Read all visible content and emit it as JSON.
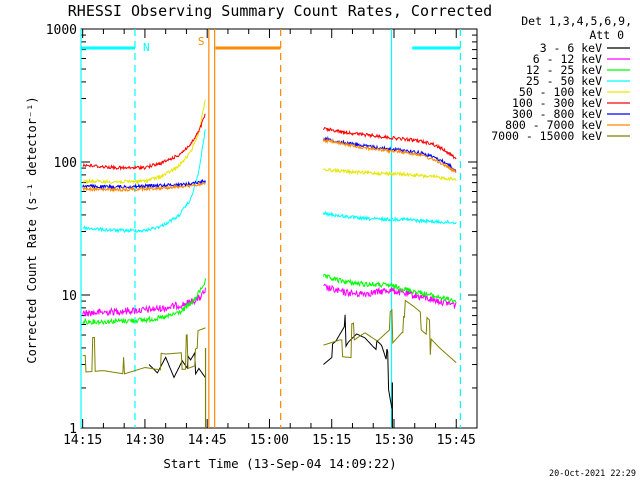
{
  "chart_data": {
    "type": "line",
    "title": "RHESSI Observing Summary Count Rates, Corrected",
    "xlabel": "Start Time (13-Sep-04 14:09:22)",
    "ylabel": "Corrected Count Rate (s⁻¹ detector⁻¹)",
    "yscale": "log",
    "ylim": [
      1,
      1000
    ],
    "xlim_minutes": [
      14.6,
      110
    ],
    "x_unit": "minutes after 14:00 UT",
    "xticks": [
      {
        "label": "14:15",
        "t": 15
      },
      {
        "label": "14:30",
        "t": 30
      },
      {
        "label": "14:45",
        "t": 45
      },
      {
        "label": "15:00",
        "t": 60
      },
      {
        "label": "15:15",
        "t": 75
      },
      {
        "label": "15:30",
        "t": 90
      },
      {
        "label": "15:45",
        "t": 105
      }
    ],
    "yticks": [
      {
        "label": "1",
        "v": 1
      },
      {
        "label": "10",
        "v": 10
      },
      {
        "label": "100",
        "v": 100
      },
      {
        "label": "1000",
        "v": 1000
      }
    ],
    "legend_placement": "top-right",
    "legend_header": [
      "Det 1,3,4,5,6,9,",
      "Att 0"
    ],
    "series": [
      {
        "name": "3 - 6 keV",
        "color": "#000000",
        "seg1": [
          [
            31,
            3.0
          ],
          [
            33,
            2.6
          ],
          [
            35,
            3.4
          ],
          [
            37,
            2.4
          ],
          [
            39,
            3.2
          ],
          [
            41,
            2.6
          ],
          [
            43,
            3.3
          ],
          [
            44.6,
            2.8
          ]
        ],
        "seg2": [
          [
            73,
            3.0
          ],
          [
            76,
            3.6
          ],
          [
            79,
            5.2
          ],
          [
            81,
            6.0
          ],
          [
            83,
            5.6
          ],
          [
            85,
            4.8
          ],
          [
            87,
            4.2
          ],
          [
            88.5,
            3.0
          ],
          [
            89.5,
            2.0
          ]
        ]
      },
      {
        "name": "6 - 12 keV",
        "color": "#ff00ff",
        "seg1": [
          [
            15,
            7.3
          ],
          [
            20,
            7.4
          ],
          [
            25,
            7.6
          ],
          [
            30,
            7.7
          ],
          [
            35,
            8.0
          ],
          [
            40,
            8.6
          ],
          [
            43,
            9.4
          ],
          [
            44.6,
            10.8
          ]
        ],
        "seg2": [
          [
            73,
            11.5
          ],
          [
            77,
            10.6
          ],
          [
            81,
            10.2
          ],
          [
            85,
            10.4
          ],
          [
            89,
            10.9
          ],
          [
            93,
            10.2
          ],
          [
            97,
            9.6
          ],
          [
            101,
            9.0
          ],
          [
            105,
            8.4
          ]
        ]
      },
      {
        "name": "12 - 25 keV",
        "color": "#00ff00",
        "seg1": [
          [
            15,
            6.3
          ],
          [
            20,
            6.3
          ],
          [
            25,
            6.4
          ],
          [
            30,
            6.5
          ],
          [
            35,
            6.8
          ],
          [
            39,
            7.6
          ],
          [
            42,
            9.2
          ],
          [
            44.6,
            12.8
          ]
        ],
        "seg2": [
          [
            73,
            13.8
          ],
          [
            77,
            12.8
          ],
          [
            81,
            12.2
          ],
          [
            85,
            12.0
          ],
          [
            89,
            11.8
          ],
          [
            93,
            11.0
          ],
          [
            97,
            10.3
          ],
          [
            101,
            9.6
          ],
          [
            105,
            9.0
          ]
        ]
      },
      {
        "name": "25 - 50 keV",
        "color": "#00ffff",
        "seg1": [
          [
            15,
            32
          ],
          [
            20,
            31
          ],
          [
            25,
            30.5
          ],
          [
            30,
            30.5
          ],
          [
            34,
            33
          ],
          [
            38,
            39
          ],
          [
            41,
            52
          ],
          [
            43,
            85
          ],
          [
            44.6,
            180
          ]
        ],
        "seg2": [
          [
            73,
            41
          ],
          [
            78,
            39
          ],
          [
            83,
            37.5
          ],
          [
            88,
            37
          ],
          [
            92,
            37.2
          ],
          [
            96,
            36.2
          ],
          [
            100,
            35.5
          ],
          [
            105,
            35
          ]
        ]
      },
      {
        "name": "50 - 100 keV",
        "color": "#e6e600",
        "seg1": [
          [
            15,
            72
          ],
          [
            20,
            71
          ],
          [
            25,
            71
          ],
          [
            30,
            72
          ],
          [
            34,
            78
          ],
          [
            38,
            92
          ],
          [
            41,
            118
          ],
          [
            43,
            168
          ],
          [
            44.6,
            300
          ]
        ],
        "seg2": [
          [
            73,
            88
          ],
          [
            78,
            85
          ],
          [
            83,
            83
          ],
          [
            88,
            82
          ],
          [
            92,
            81
          ],
          [
            96,
            79
          ],
          [
            100,
            77
          ],
          [
            105,
            74
          ]
        ]
      },
      {
        "name": "100 - 300 keV",
        "color": "#ff0000",
        "seg1": [
          [
            15,
            95
          ],
          [
            20,
            92
          ],
          [
            25,
            90
          ],
          [
            30,
            91
          ],
          [
            34,
            98
          ],
          [
            38,
            112
          ],
          [
            41,
            135
          ],
          [
            43,
            170
          ],
          [
            44.6,
            230
          ]
        ],
        "seg2": [
          [
            73,
            178
          ],
          [
            78,
            168
          ],
          [
            83,
            160
          ],
          [
            88,
            154
          ],
          [
            91,
            150
          ],
          [
            95,
            146
          ],
          [
            99,
            138
          ],
          [
            102,
            124
          ],
          [
            105,
            106
          ]
        ]
      },
      {
        "name": "300 - 800 keV",
        "color": "#0000ff",
        "seg1": [
          [
            15,
            66
          ],
          [
            20,
            65
          ],
          [
            25,
            65
          ],
          [
            30,
            66
          ],
          [
            35,
            67
          ],
          [
            40,
            68
          ],
          [
            44.6,
            72
          ]
        ],
        "seg2": [
          [
            73,
            150
          ],
          [
            78,
            140
          ],
          [
            83,
            132
          ],
          [
            88,
            126
          ],
          [
            92,
            123
          ],
          [
            96,
            118
          ],
          [
            100,
            108
          ],
          [
            103,
            96
          ],
          [
            105,
            86
          ]
        ]
      },
      {
        "name": "800 - 7000 keV",
        "color": "#ff8800",
        "seg1": [
          [
            15,
            63
          ],
          [
            20,
            62
          ],
          [
            25,
            62
          ],
          [
            30,
            63
          ],
          [
            35,
            64
          ],
          [
            40,
            66
          ],
          [
            44.6,
            68
          ]
        ],
        "seg2": [
          [
            73,
            146
          ],
          [
            78,
            136
          ],
          [
            83,
            128
          ],
          [
            88,
            122
          ],
          [
            92,
            119
          ],
          [
            96,
            114
          ],
          [
            100,
            103
          ],
          [
            103,
            92
          ],
          [
            105,
            83
          ]
        ]
      },
      {
        "name": "7000 - 15000 keV",
        "color": "#808000",
        "seg1": [
          [
            15,
            3.5
          ],
          [
            20,
            3.6
          ],
          [
            25,
            3.4
          ],
          [
            30,
            3.8
          ],
          [
            35,
            3.6
          ],
          [
            40,
            3.7
          ],
          [
            44.6,
            4.2
          ]
        ],
        "seg2": [
          [
            73,
            4.2
          ],
          [
            77,
            4.6
          ],
          [
            80,
            4.5
          ],
          [
            83,
            5.2
          ],
          [
            86,
            4.5
          ],
          [
            89,
            5.5
          ],
          [
            92,
            7.0
          ],
          [
            95,
            6.0
          ],
          [
            98,
            5.0
          ],
          [
            101,
            4.0
          ],
          [
            105,
            3.1
          ]
        ]
      }
    ],
    "bars": [
      {
        "label": "N",
        "color": "#00ffff",
        "intervals": [
          [
            14.6,
            27.6
          ],
          [
            94.4,
            106
          ]
        ]
      },
      {
        "label": "S",
        "color": "#ff8800",
        "intervals": [
          [
            47,
            62.7
          ]
        ]
      }
    ],
    "vlines": [
      {
        "t": 14.6,
        "color": "#00ffff",
        "dash": false
      },
      {
        "t": 27.6,
        "color": "#00ffff",
        "dash": true
      },
      {
        "t": 45.4,
        "color": "#ff8800",
        "dash": false
      },
      {
        "t": 46.8,
        "color": "#ff8800",
        "dash": false
      },
      {
        "t": 62.7,
        "color": "#ff8800",
        "dash": true
      },
      {
        "t": 89.4,
        "color": "#00ffff",
        "dash": false
      },
      {
        "t": 106.0,
        "color": "#00ffff",
        "dash": true
      }
    ],
    "timestamp": "20-Oct-2021 22:29"
  }
}
